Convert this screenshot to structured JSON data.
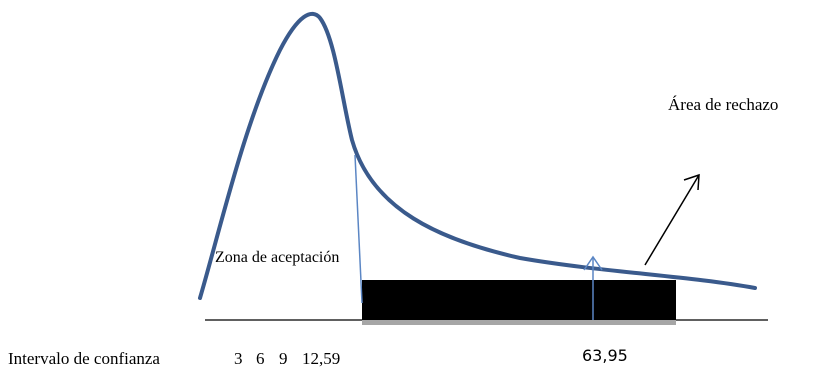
{
  "labels": {
    "rejection_area": "Área de rechazo",
    "acceptance_zone": "Zona de aceptación",
    "confidence_interval": "Intervalo de confianza",
    "tick_3": "3",
    "tick_6": "6",
    "tick_9": "9",
    "tick_critical": "12,59",
    "tick_statistic": "63,95"
  },
  "colors": {
    "curve": "#3a5a8c",
    "marker_line": "#5b86c4",
    "rejection_block": "#000000",
    "block_shadow": "#a6a6a6",
    "axis": "#000000",
    "pointer_arrow": "#000000"
  },
  "icons": {
    "statistic_marker": "up-arrow-icon",
    "rejection_pointer": "diagonal-arrow-icon"
  }
}
